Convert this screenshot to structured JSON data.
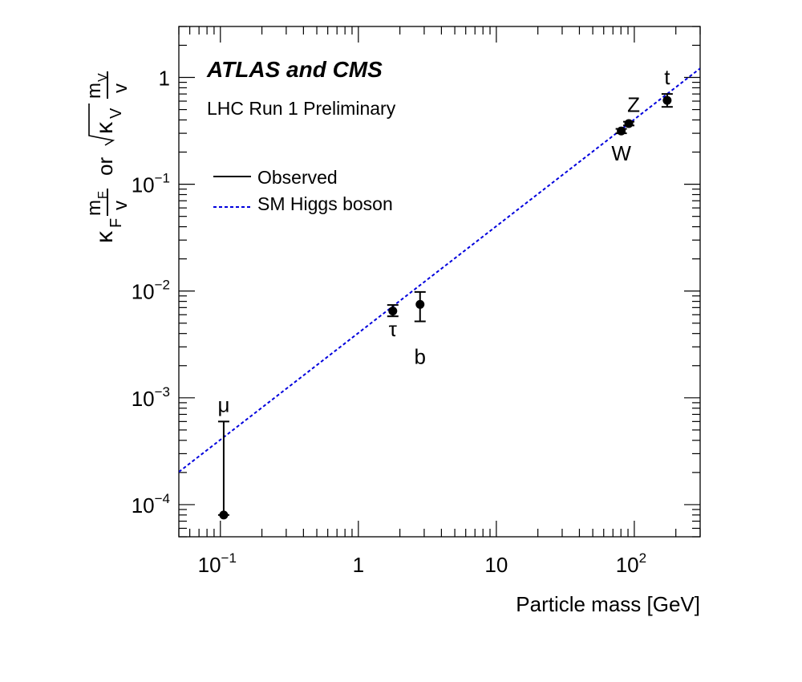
{
  "chart_data": {
    "type": "scatter",
    "title": "ATLAS and CMS",
    "subtitle": "LHC Run 1 Preliminary",
    "xlabel": "Particle mass [GeV]",
    "ylabel": {
      "kappa_f": "κ",
      "sub_f": "F",
      "m_f": "m",
      "m_f_sub": "F",
      "v": "v",
      "or": "or",
      "kappa_v": "κ",
      "sub_v": "V",
      "m_v": "m",
      "m_v_sub": "V"
    },
    "x_scale": "log",
    "y_scale": "log",
    "xlim": [
      0.05,
      300
    ],
    "ylim": [
      5e-05,
      3
    ],
    "x_ticks": [
      {
        "value": 0.1,
        "base": "10",
        "exp": "−1"
      },
      {
        "value": 1,
        "base": "1",
        "exp": ""
      },
      {
        "value": 10,
        "base": "10",
        "exp": ""
      },
      {
        "value": 100,
        "base": "10",
        "exp": "2"
      }
    ],
    "y_ticks": [
      {
        "value": 0.0001,
        "base": "10",
        "exp": "−4"
      },
      {
        "value": 0.001,
        "base": "10",
        "exp": "−3"
      },
      {
        "value": 0.01,
        "base": "10",
        "exp": "−2"
      },
      {
        "value": 0.1,
        "base": "10",
        "exp": "−1"
      },
      {
        "value": 1,
        "base": "1",
        "exp": ""
      }
    ],
    "legend": {
      "placement": "upper-left",
      "entries": [
        {
          "label": "Observed",
          "style": "solid",
          "color": "#000000"
        },
        {
          "label": "SM Higgs boson",
          "style": "dashed",
          "color": "#0000dd"
        }
      ]
    },
    "sm_line": {
      "color": "#0000dd",
      "slope": 1,
      "scale": 0.00405
    },
    "points": [
      {
        "label": "μ",
        "mass": 0.1057,
        "value": 8e-05,
        "err_low": 8e-05,
        "err_high": 0.0006,
        "label_pos": "above"
      },
      {
        "label": "τ",
        "mass": 1.777,
        "value": 0.0065,
        "err_low": 0.0058,
        "err_high": 0.0074,
        "label_pos": "below"
      },
      {
        "label": "b",
        "mass": 2.8,
        "value": 0.0075,
        "err_low": 0.0052,
        "err_high": 0.0098,
        "label_pos": "below"
      },
      {
        "label": "W",
        "mass": 80.4,
        "value": 0.315,
        "err_low": 0.3,
        "err_high": 0.33,
        "label_pos": "below"
      },
      {
        "label": "Z",
        "mass": 91.2,
        "value": 0.37,
        "err_low": 0.355,
        "err_high": 0.385,
        "label_pos": "above"
      },
      {
        "label": "t",
        "mass": 173,
        "value": 0.61,
        "err_low": 0.53,
        "err_high": 0.7,
        "label_pos": "above"
      }
    ]
  }
}
